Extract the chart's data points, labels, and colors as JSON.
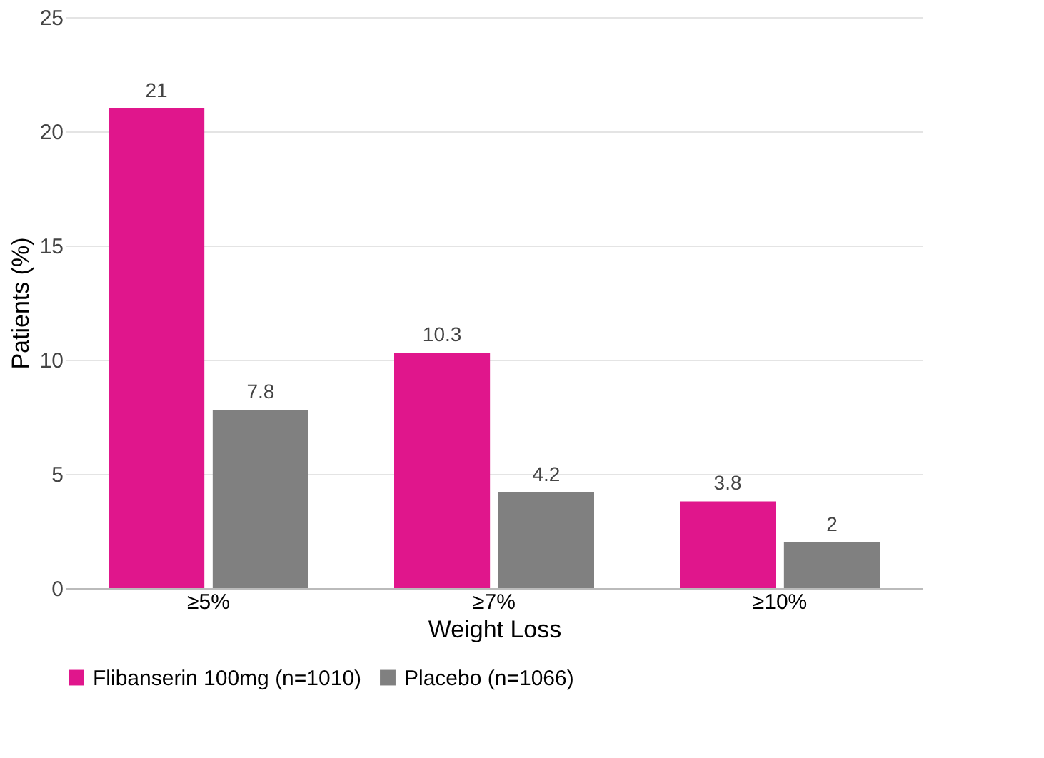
{
  "chart_data": {
    "type": "bar",
    "xlabel": "Weight Loss",
    "ylabel": "Patients (%)",
    "categories": [
      "≥5%",
      "≥7%",
      "≥10%"
    ],
    "series": [
      {
        "name": "Flibanserin 100mg (n=1010)",
        "color": "#e0168c",
        "values": [
          21,
          10.3,
          3.8
        ]
      },
      {
        "name": "Placebo (n=1066)",
        "color": "#808080",
        "values": [
          7.8,
          4.2,
          2
        ]
      }
    ],
    "ylim": [
      0,
      25
    ],
    "yticks": [
      0,
      5,
      10,
      15,
      20,
      25
    ],
    "grid": "y",
    "legend": "bottom",
    "data_labels": true
  }
}
